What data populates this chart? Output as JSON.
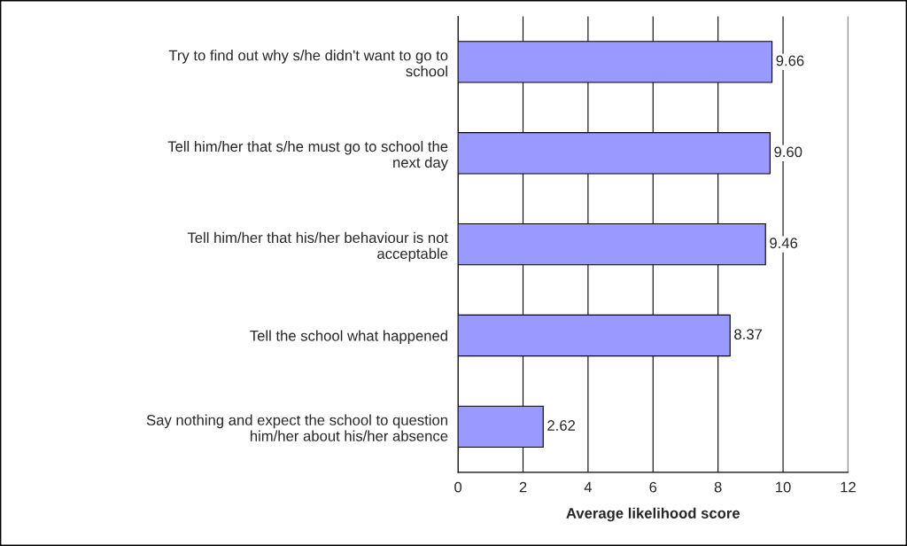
{
  "chart_data": {
    "type": "bar",
    "orientation": "horizontal",
    "categories": [
      "Try to find out why s/he didn't want to go to school",
      "Tell him/her that s/he must go to school the next day",
      "Tell him/her that his/her behaviour is not acceptable",
      "Tell the school what happened",
      "Say nothing and expect the school to question him/her about his/her absence"
    ],
    "values": [
      9.66,
      9.6,
      9.46,
      8.37,
      2.62
    ],
    "value_labels": [
      "9.66",
      "9.60",
      "9.46",
      "8.37",
      "2.62"
    ],
    "color": "#9999ff",
    "xlabel": "Average likelihood score",
    "xlim": [
      0,
      12
    ],
    "xticks": [
      0,
      2,
      4,
      6,
      8,
      10,
      12
    ],
    "grid": "x"
  }
}
